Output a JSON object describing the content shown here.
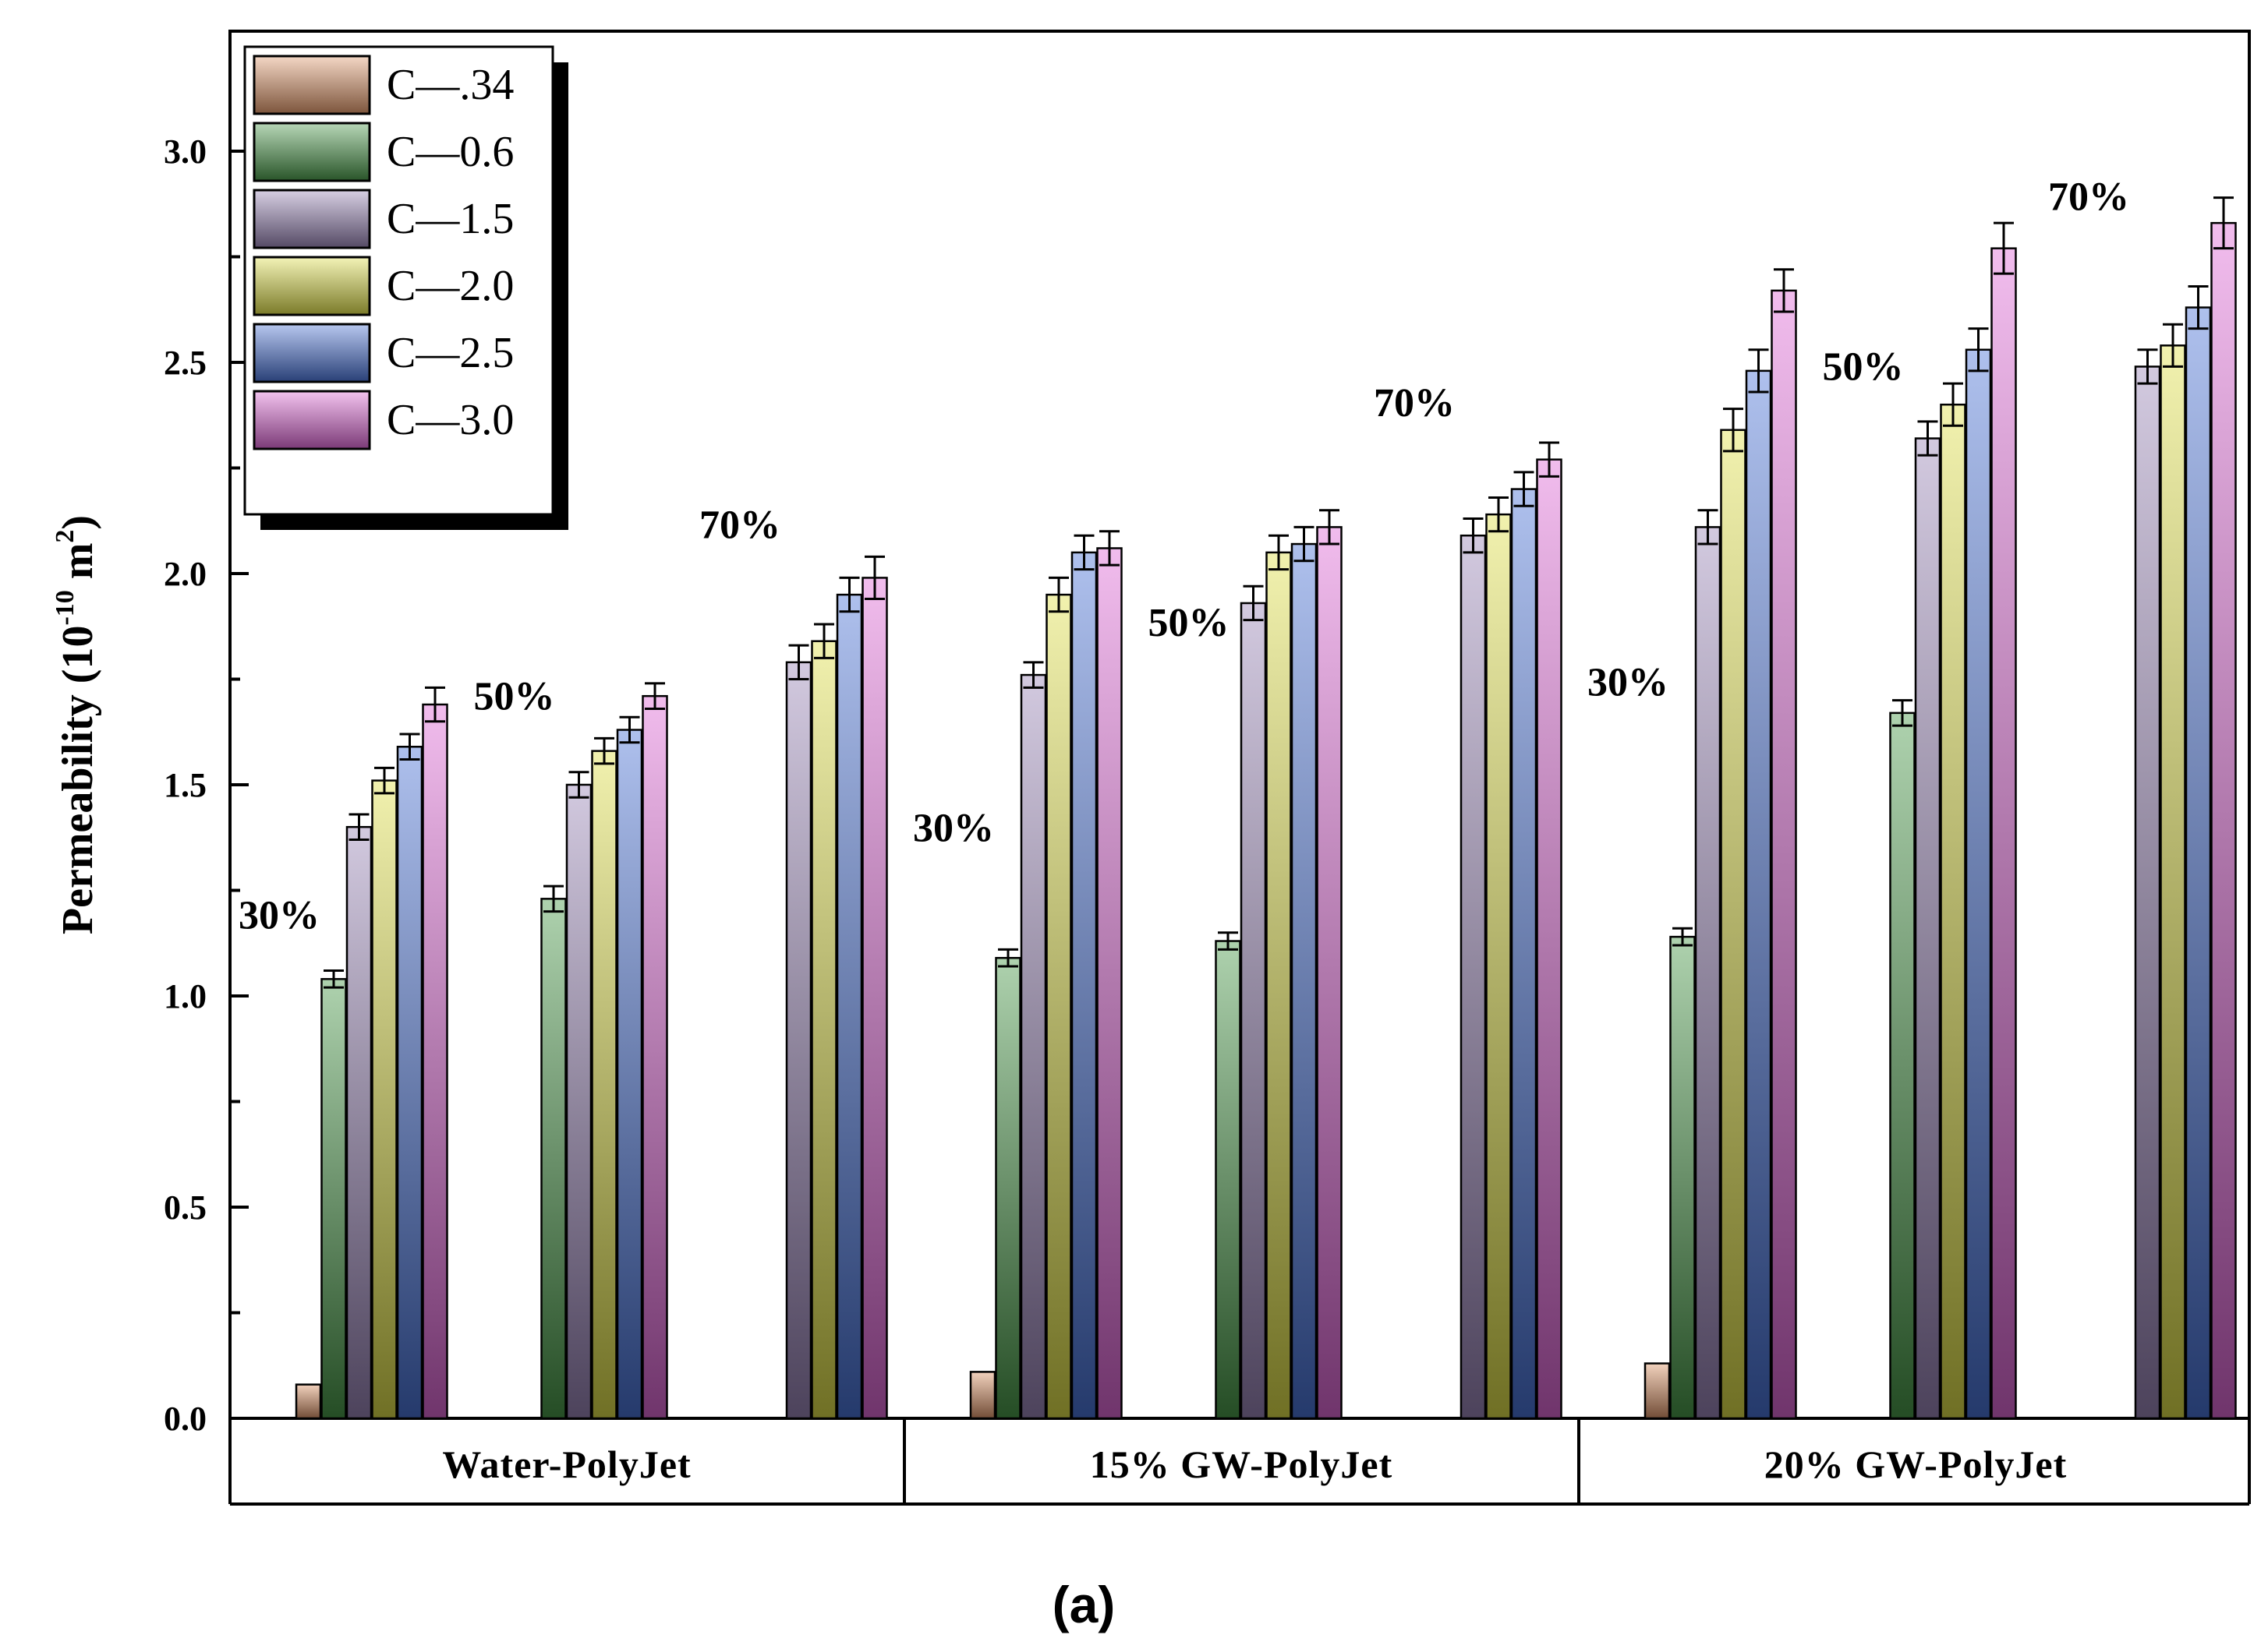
{
  "chart_data": {
    "type": "bar",
    "ylabel_base": "Permeability (10",
    "ylabel_exp1": "-10",
    "ylabel_mid": " m",
    "ylabel_exp2": "2",
    "ylabel_end": ")",
    "ylim": [
      0,
      3.25
    ],
    "yticks": [
      "0.0",
      "0.5",
      "1.0",
      "1.5",
      "2.0",
      "2.5",
      "3.0"
    ],
    "caption": "(a)",
    "legend": [
      {
        "name": "C—.34",
        "color": "#e39a6d"
      },
      {
        "name": "C—0.6",
        "color": "#4a9a4a"
      },
      {
        "name": "C—1.5",
        "color": "#9a86b8"
      },
      {
        "name": "C—2.0",
        "color": "#e0e04a"
      },
      {
        "name": "C—2.5",
        "color": "#4a74d8"
      },
      {
        "name": "C—3.0",
        "color": "#e06ad8"
      }
    ],
    "groups": [
      {
        "label": "Water-PolyJet",
        "clusters": [
          {
            "label": "30%",
            "values": [
              0.08,
              1.04,
              1.4,
              1.51,
              1.59,
              1.69
            ],
            "errors": [
              0,
              0.02,
              0.03,
              0.03,
              0.03,
              0.04
            ]
          },
          {
            "label": "50%",
            "values": [
              null,
              1.23,
              1.5,
              1.58,
              1.63,
              1.71
            ],
            "errors": [
              0,
              0.03,
              0.03,
              0.03,
              0.03,
              0.03
            ]
          },
          {
            "label": "70%",
            "values": [
              null,
              null,
              1.79,
              1.84,
              1.95,
              1.99
            ],
            "errors": [
              0,
              0,
              0.04,
              0.04,
              0.04,
              0.05
            ]
          }
        ]
      },
      {
        "label": "15% GW-PolyJet",
        "clusters": [
          {
            "label": "30%",
            "values": [
              0.11,
              1.09,
              1.76,
              1.95,
              2.05,
              2.06
            ],
            "errors": [
              0,
              0.02,
              0.03,
              0.04,
              0.04,
              0.04
            ]
          },
          {
            "label": "50%",
            "values": [
              null,
              1.13,
              1.93,
              2.05,
              2.07,
              2.11
            ],
            "errors": [
              0,
              0.02,
              0.04,
              0.04,
              0.04,
              0.04
            ]
          },
          {
            "label": "70%",
            "values": [
              null,
              null,
              2.09,
              2.14,
              2.2,
              2.27
            ],
            "errors": [
              0,
              0,
              0.04,
              0.04,
              0.04,
              0.04
            ]
          }
        ]
      },
      {
        "label": "20% GW-PolyJet",
        "clusters": [
          {
            "label": "30%",
            "values": [
              0.13,
              1.14,
              2.11,
              2.34,
              2.48,
              2.67
            ],
            "errors": [
              0,
              0.02,
              0.04,
              0.05,
              0.05,
              0.05
            ]
          },
          {
            "label": "50%",
            "values": [
              null,
              1.67,
              2.32,
              2.4,
              2.53,
              2.77
            ],
            "errors": [
              0,
              0.03,
              0.04,
              0.05,
              0.05,
              0.06
            ]
          },
          {
            "label": "70%",
            "values": [
              null,
              null,
              2.49,
              2.54,
              2.63,
              2.83
            ],
            "errors": [
              0,
              0,
              0.04,
              0.05,
              0.05,
              0.06
            ]
          }
        ]
      }
    ]
  }
}
